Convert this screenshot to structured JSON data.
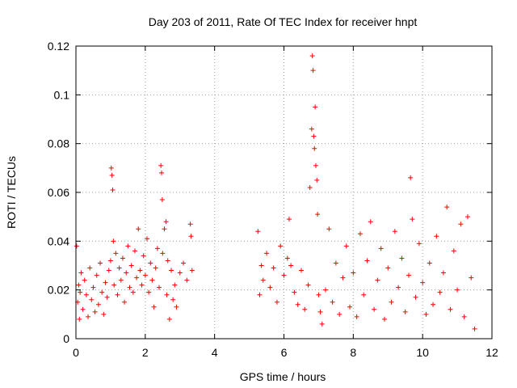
{
  "chart_data": {
    "type": "scatter",
    "title": "Day 203 of 2011, Rate Of TEC Index for receiver hnpt",
    "xlabel": "GPS time / hours",
    "ylabel": "ROTI / TECUs",
    "xlim": [
      0,
      12
    ],
    "ylim": [
      0,
      0.12
    ],
    "x_ticks": [
      0,
      2,
      4,
      6,
      8,
      10,
      12
    ],
    "y_ticks": [
      0,
      0.02,
      0.04,
      0.06,
      0.08,
      0.1,
      0.12
    ],
    "x_tick_labels": [
      "0",
      "2",
      "4",
      "6",
      "8",
      "10",
      "12"
    ],
    "y_tick_labels": [
      "0",
      "0.02",
      "0.04",
      "0.06",
      "0.08",
      "0.1",
      "0.12"
    ],
    "grid": true,
    "marker": "+",
    "color": "#ff0000",
    "series": [
      {
        "points": [
          [
            0.02,
            0.038
          ],
          [
            0.05,
            0.015
          ],
          [
            0.08,
            0.022
          ],
          [
            0.1,
            0.008
          ],
          [
            0.12,
            0.019
          ],
          [
            0.15,
            0.027
          ],
          [
            0.2,
            0.012
          ],
          [
            0.25,
            0.024
          ],
          [
            0.3,
            0.018
          ],
          [
            0.35,
            0.009
          ],
          [
            0.4,
            0.029
          ],
          [
            0.45,
            0.016
          ],
          [
            0.5,
            0.021
          ],
          [
            0.55,
            0.011
          ],
          [
            0.6,
            0.026
          ],
          [
            0.65,
            0.014
          ],
          [
            0.7,
            0.031
          ],
          [
            0.75,
            0.019
          ],
          [
            0.8,
            0.01
          ],
          [
            0.85,
            0.023
          ],
          [
            0.9,
            0.017
          ],
          [
            0.95,
            0.028
          ],
          [
            1.0,
            0.032
          ],
          [
            1.02,
            0.07
          ],
          [
            1.04,
            0.067
          ],
          [
            1.06,
            0.061
          ],
          [
            1.08,
            0.04
          ],
          [
            1.1,
            0.022
          ],
          [
            1.15,
            0.035
          ],
          [
            1.2,
            0.018
          ],
          [
            1.25,
            0.029
          ],
          [
            1.3,
            0.024
          ],
          [
            1.35,
            0.033
          ],
          [
            1.4,
            0.015
          ],
          [
            1.45,
            0.027
          ],
          [
            1.5,
            0.038
          ],
          [
            1.55,
            0.021
          ],
          [
            1.6,
            0.03
          ],
          [
            1.65,
            0.019
          ],
          [
            1.7,
            0.036
          ],
          [
            1.75,
            0.025
          ],
          [
            1.8,
            0.045
          ],
          [
            1.85,
            0.028
          ],
          [
            1.9,
            0.022
          ],
          [
            1.95,
            0.034
          ],
          [
            2.0,
            0.026
          ],
          [
            2.05,
            0.041
          ],
          [
            2.1,
            0.019
          ],
          [
            2.15,
            0.031
          ],
          [
            2.2,
            0.024
          ],
          [
            2.25,
            0.013
          ],
          [
            2.3,
            0.029
          ],
          [
            2.35,
            0.037
          ],
          [
            2.4,
            0.021
          ],
          [
            2.45,
            0.071
          ],
          [
            2.47,
            0.068
          ],
          [
            2.49,
            0.057
          ],
          [
            2.5,
            0.035
          ],
          [
            2.55,
            0.045
          ],
          [
            2.6,
            0.048
          ],
          [
            2.62,
            0.018
          ],
          [
            2.65,
            0.032
          ],
          [
            2.7,
            0.008
          ],
          [
            2.75,
            0.028
          ],
          [
            2.8,
            0.016
          ],
          [
            2.85,
            0.022
          ],
          [
            2.9,
            0.013
          ],
          [
            3.0,
            0.027
          ],
          [
            3.1,
            0.031
          ],
          [
            3.2,
            0.024
          ],
          [
            3.3,
            0.047
          ],
          [
            3.32,
            0.042
          ],
          [
            3.35,
            0.028
          ],
          [
            5.25,
            0.044
          ],
          [
            5.3,
            0.018
          ],
          [
            5.35,
            0.03
          ],
          [
            5.4,
            0.024
          ],
          [
            5.5,
            0.035
          ],
          [
            5.6,
            0.021
          ],
          [
            5.7,
            0.029
          ],
          [
            5.8,
            0.015
          ],
          [
            5.9,
            0.038
          ],
          [
            6.0,
            0.026
          ],
          [
            6.1,
            0.033
          ],
          [
            6.15,
            0.049
          ],
          [
            6.2,
            0.03
          ],
          [
            6.3,
            0.019
          ],
          [
            6.4,
            0.014
          ],
          [
            6.5,
            0.028
          ],
          [
            6.6,
            0.012
          ],
          [
            6.7,
            0.022
          ],
          [
            6.75,
            0.062
          ],
          [
            6.8,
            0.086
          ],
          [
            6.82,
            0.116
          ],
          [
            6.84,
            0.11
          ],
          [
            6.86,
            0.083
          ],
          [
            6.88,
            0.078
          ],
          [
            6.9,
            0.095
          ],
          [
            6.92,
            0.071
          ],
          [
            6.95,
            0.065
          ],
          [
            6.97,
            0.051
          ],
          [
            7.0,
            0.018
          ],
          [
            7.05,
            0.011
          ],
          [
            7.1,
            0.006
          ],
          [
            7.2,
            0.02
          ],
          [
            7.3,
            0.045
          ],
          [
            7.4,
            0.015
          ],
          [
            7.5,
            0.031
          ],
          [
            7.6,
            0.01
          ],
          [
            7.7,
            0.025
          ],
          [
            7.8,
            0.038
          ],
          [
            7.9,
            0.013
          ],
          [
            8.0,
            0.027
          ],
          [
            8.1,
            0.009
          ],
          [
            8.2,
            0.043
          ],
          [
            8.3,
            0.018
          ],
          [
            8.4,
            0.032
          ],
          [
            8.5,
            0.048
          ],
          [
            8.6,
            0.012
          ],
          [
            8.7,
            0.024
          ],
          [
            8.8,
            0.037
          ],
          [
            8.9,
            0.008
          ],
          [
            9.0,
            0.029
          ],
          [
            9.1,
            0.015
          ],
          [
            9.2,
            0.044
          ],
          [
            9.3,
            0.021
          ],
          [
            9.4,
            0.033
          ],
          [
            9.5,
            0.011
          ],
          [
            9.6,
            0.026
          ],
          [
            9.65,
            0.066
          ],
          [
            9.7,
            0.049
          ],
          [
            9.8,
            0.017
          ],
          [
            9.9,
            0.039
          ],
          [
            10.0,
            0.023
          ],
          [
            10.1,
            0.01
          ],
          [
            10.2,
            0.031
          ],
          [
            10.3,
            0.014
          ],
          [
            10.4,
            0.042
          ],
          [
            10.5,
            0.019
          ],
          [
            10.6,
            0.027
          ],
          [
            10.7,
            0.054
          ],
          [
            10.8,
            0.012
          ],
          [
            10.9,
            0.036
          ],
          [
            11.0,
            0.02
          ],
          [
            11.1,
            0.047
          ],
          [
            11.2,
            0.009
          ],
          [
            11.3,
            0.05
          ],
          [
            11.4,
            0.025
          ],
          [
            11.5,
            0.004
          ]
        ]
      }
    ]
  }
}
